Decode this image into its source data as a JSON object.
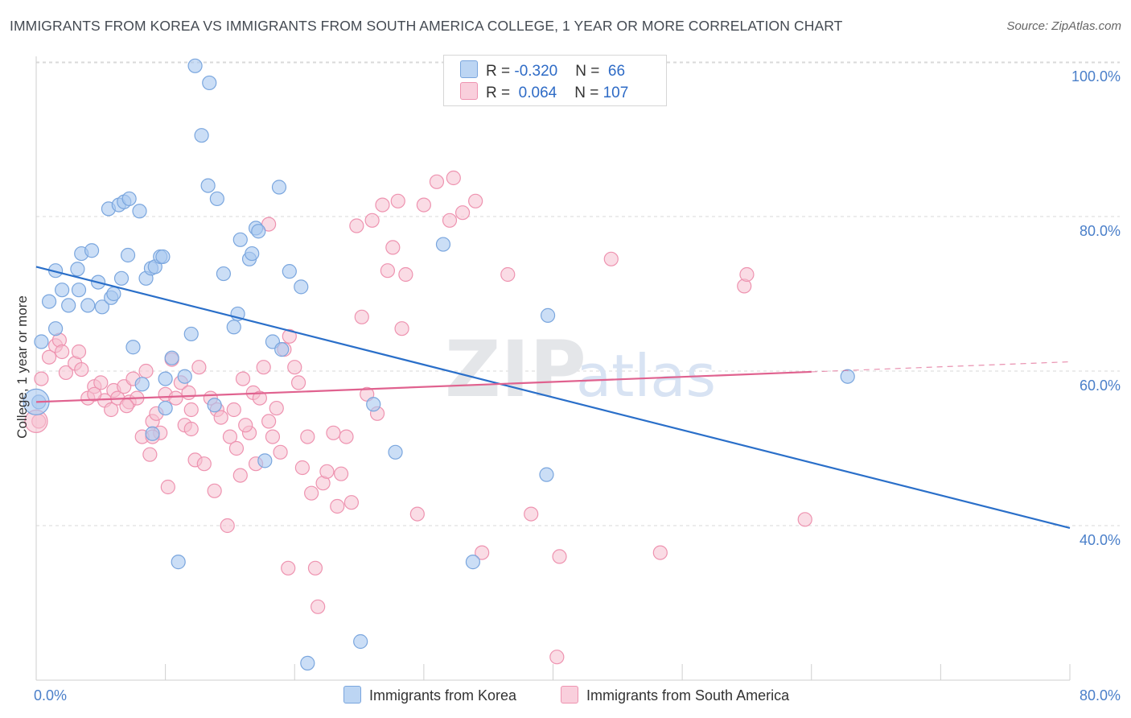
{
  "title": "IMMIGRANTS FROM KOREA VS IMMIGRANTS FROM SOUTH AMERICA COLLEGE, 1 YEAR OR MORE CORRELATION CHART",
  "source": "Source: ZipAtlas.com",
  "colors": {
    "korea_fill": "#a9c8f0",
    "korea_stroke": "#7aa6de",
    "korea_line": "#2a6fc9",
    "sa_fill": "#f6bfd0",
    "sa_stroke": "#ee93b0",
    "sa_line": "#e0628f",
    "axis_text": "#4a7fc9",
    "grid": "#d9d9d9"
  },
  "legend": {
    "rows": [
      {
        "r_label": "R = ",
        "r_value": "-0.320",
        "n_label": "N = ",
        "n_value": " 66"
      },
      {
        "r_label": "R = ",
        "r_value": " 0.064",
        "n_label": "N = ",
        "n_value": "107"
      }
    ]
  },
  "bottom_legend": {
    "korea": "Immigrants from Korea",
    "sa": "Immigrants from South America"
  },
  "watermark": {
    "zip": "ZIP",
    "atlas": "atlas"
  },
  "chart_data": {
    "type": "scatter",
    "title": "IMMIGRANTS FROM KOREA VS IMMIGRANTS FROM SOUTH AMERICA COLLEGE, 1 YEAR OR MORE CORRELATION CHART",
    "ylabel": "College, 1 year or more",
    "xlabel": "",
    "xlim": [
      0,
      80
    ],
    "ylim": [
      20,
      102
    ],
    "x_tick_labels": [
      "0.0%",
      "80.0%"
    ],
    "y_ticks": [
      40,
      60,
      80,
      100
    ],
    "y_tick_labels": [
      "40.0%",
      "60.0%",
      "80.0%",
      "100.0%"
    ],
    "grid": true,
    "series": [
      {
        "name": "Immigrants from Korea",
        "R": -0.32,
        "N": 66,
        "trend": {
          "x": [
            0,
            80
          ],
          "y": [
            73.5,
            39.7
          ]
        },
        "points": [
          [
            0.2,
            56.0
          ],
          [
            0.4,
            63.8
          ],
          [
            1.0,
            69.0
          ],
          [
            1.5,
            65.5
          ],
          [
            1.5,
            73.0
          ],
          [
            2.0,
            70.5
          ],
          [
            2.5,
            68.5
          ],
          [
            3.2,
            73.2
          ],
          [
            3.3,
            70.5
          ],
          [
            3.5,
            75.2
          ],
          [
            4.0,
            68.5
          ],
          [
            4.3,
            75.6
          ],
          [
            4.8,
            71.5
          ],
          [
            5.1,
            68.3
          ],
          [
            5.6,
            81.0
          ],
          [
            5.8,
            69.5
          ],
          [
            6.4,
            81.5
          ],
          [
            6.8,
            81.9
          ],
          [
            6.6,
            72.0
          ],
          [
            7.1,
            75.0
          ],
          [
            7.2,
            82.3
          ],
          [
            7.5,
            63.1
          ],
          [
            8.0,
            80.7
          ],
          [
            8.2,
            58.3
          ],
          [
            8.5,
            72.0
          ],
          [
            8.9,
            73.3
          ],
          [
            9.0,
            51.9
          ],
          [
            9.2,
            73.5
          ],
          [
            9.6,
            74.8
          ],
          [
            9.8,
            74.8
          ],
          [
            10.0,
            55.2
          ],
          [
            10.5,
            61.7
          ],
          [
            11.0,
            35.3
          ],
          [
            11.5,
            59.3
          ],
          [
            12.0,
            64.8
          ],
          [
            12.3,
            99.5
          ],
          [
            12.8,
            90.5
          ],
          [
            13.3,
            84.0
          ],
          [
            13.4,
            97.3
          ],
          [
            13.8,
            55.6
          ],
          [
            14.0,
            82.3
          ],
          [
            14.5,
            72.6
          ],
          [
            15.3,
            65.7
          ],
          [
            15.6,
            67.4
          ],
          [
            15.8,
            77.0
          ],
          [
            16.5,
            74.5
          ],
          [
            16.7,
            75.2
          ],
          [
            17.0,
            78.5
          ],
          [
            17.2,
            78.1
          ],
          [
            17.7,
            48.4
          ],
          [
            18.3,
            63.8
          ],
          [
            18.8,
            83.8
          ],
          [
            19.0,
            62.8
          ],
          [
            19.6,
            72.9
          ],
          [
            20.5,
            70.9
          ],
          [
            21.0,
            22.2
          ],
          [
            25.1,
            25.0
          ],
          [
            26.1,
            55.7
          ],
          [
            27.8,
            49.5
          ],
          [
            31.5,
            76.4
          ],
          [
            33.8,
            35.3
          ],
          [
            39.5,
            46.6
          ],
          [
            39.6,
            67.2
          ],
          [
            62.8,
            59.3
          ],
          [
            10.0,
            59.0
          ],
          [
            6.0,
            70.0
          ]
        ]
      },
      {
        "name": "Immigrants from South America",
        "R": 0.064,
        "N": 107,
        "trend": {
          "x": [
            0,
            60
          ],
          "y": [
            56.0,
            59.9
          ]
        },
        "trend_dashed": {
          "x": [
            60,
            80
          ],
          "y": [
            59.9,
            61.2
          ]
        },
        "points": [
          [
            0.2,
            53.5
          ],
          [
            0.4,
            59.0
          ],
          [
            1.0,
            61.8
          ],
          [
            1.5,
            63.3
          ],
          [
            1.8,
            64.0
          ],
          [
            2.0,
            62.5
          ],
          [
            2.3,
            59.8
          ],
          [
            3.0,
            61.0
          ],
          [
            3.3,
            62.5
          ],
          [
            3.5,
            60.2
          ],
          [
            4.0,
            56.5
          ],
          [
            4.5,
            58.0
          ],
          [
            5.0,
            58.5
          ],
          [
            5.3,
            56.2
          ],
          [
            5.8,
            55.0
          ],
          [
            6.0,
            57.5
          ],
          [
            6.3,
            56.5
          ],
          [
            6.8,
            58.0
          ],
          [
            7.2,
            56.0
          ],
          [
            7.5,
            59.0
          ],
          [
            7.8,
            56.5
          ],
          [
            8.2,
            51.5
          ],
          [
            8.5,
            60.0
          ],
          [
            8.8,
            49.2
          ],
          [
            9.0,
            53.5
          ],
          [
            9.3,
            54.5
          ],
          [
            9.6,
            52.0
          ],
          [
            10.0,
            57.0
          ],
          [
            10.2,
            45.0
          ],
          [
            10.5,
            61.5
          ],
          [
            10.8,
            56.5
          ],
          [
            11.2,
            58.5
          ],
          [
            11.5,
            53.0
          ],
          [
            11.8,
            57.2
          ],
          [
            12.0,
            55.0
          ],
          [
            12.3,
            48.5
          ],
          [
            12.6,
            60.5
          ],
          [
            13.0,
            48.0
          ],
          [
            13.5,
            56.5
          ],
          [
            13.8,
            44.5
          ],
          [
            14.0,
            55.0
          ],
          [
            14.3,
            54.0
          ],
          [
            14.8,
            40.0
          ],
          [
            15.0,
            51.5
          ],
          [
            15.3,
            55.0
          ],
          [
            15.5,
            50.0
          ],
          [
            15.8,
            46.5
          ],
          [
            16.0,
            59.0
          ],
          [
            16.5,
            52.0
          ],
          [
            16.8,
            57.2
          ],
          [
            17.0,
            48.0
          ],
          [
            17.3,
            56.5
          ],
          [
            17.6,
            60.5
          ],
          [
            18.0,
            53.5
          ],
          [
            18.3,
            51.5
          ],
          [
            18.6,
            55.2
          ],
          [
            18.9,
            49.5
          ],
          [
            19.2,
            62.8
          ],
          [
            19.6,
            64.5
          ],
          [
            20.0,
            60.5
          ],
          [
            20.3,
            58.5
          ],
          [
            20.6,
            47.5
          ],
          [
            21.0,
            51.5
          ],
          [
            21.3,
            44.2
          ],
          [
            21.6,
            34.5
          ],
          [
            21.8,
            29.5
          ],
          [
            22.2,
            45.5
          ],
          [
            22.5,
            47.0
          ],
          [
            23.0,
            52.0
          ],
          [
            23.3,
            42.5
          ],
          [
            23.6,
            46.7
          ],
          [
            24.0,
            51.5
          ],
          [
            24.4,
            43.0
          ],
          [
            24.8,
            78.8
          ],
          [
            25.2,
            67.0
          ],
          [
            25.6,
            57.0
          ],
          [
            26.0,
            79.5
          ],
          [
            26.4,
            54.5
          ],
          [
            26.8,
            81.5
          ],
          [
            27.2,
            73.0
          ],
          [
            27.6,
            76.0
          ],
          [
            28.0,
            82.0
          ],
          [
            28.3,
            65.5
          ],
          [
            28.6,
            72.5
          ],
          [
            29.5,
            41.5
          ],
          [
            30.0,
            81.5
          ],
          [
            31.0,
            84.5
          ],
          [
            32.0,
            79.5
          ],
          [
            32.3,
            85.0
          ],
          [
            33.0,
            80.5
          ],
          [
            34.0,
            82.0
          ],
          [
            34.5,
            36.5
          ],
          [
            36.5,
            72.5
          ],
          [
            38.3,
            41.5
          ],
          [
            40.3,
            23.0
          ],
          [
            40.5,
            36.0
          ],
          [
            44.5,
            74.5
          ],
          [
            48.3,
            36.5
          ],
          [
            54.8,
            71.0
          ],
          [
            55.0,
            72.5
          ],
          [
            59.5,
            40.8
          ],
          [
            18.0,
            79.0
          ],
          [
            9.0,
            51.5
          ],
          [
            4.5,
            57.0
          ],
          [
            7.0,
            55.5
          ],
          [
            12.0,
            52.5
          ],
          [
            16.2,
            53.0
          ],
          [
            19.5,
            34.5
          ]
        ]
      }
    ]
  }
}
